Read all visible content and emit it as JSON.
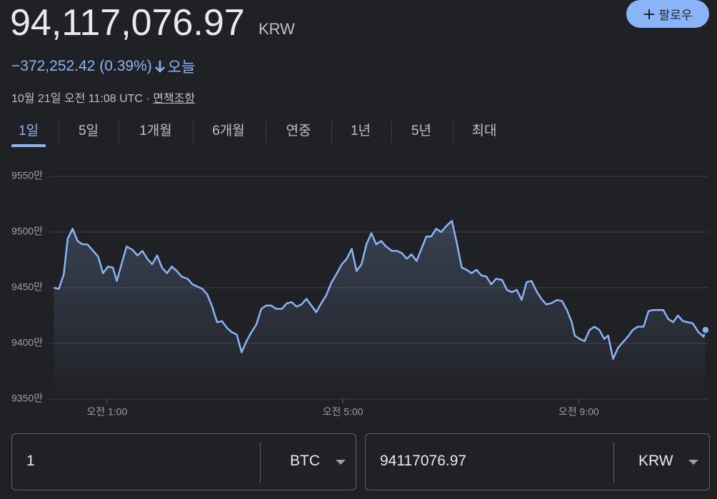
{
  "header": {
    "price": "94,117,076.97",
    "currency": "KRW",
    "change": "−372,252.42 (0.39%)",
    "period": "오늘",
    "timestamp": "10월 21일 오전 11:08 UTC",
    "separator": "·",
    "disclaimer": "면책조항",
    "follow": "팔로우"
  },
  "tabs": [
    "1일",
    "5일",
    "1개월",
    "6개월",
    "연중",
    "1년",
    "5년",
    "최대"
  ],
  "converter": {
    "from_amount": "1",
    "from_currency": "BTC",
    "to_amount": "94117076.97",
    "to_currency": "KRW"
  },
  "chart_data": {
    "type": "line",
    "grid": true,
    "xlim": [
      2,
      672
    ],
    "ylim": [
      9350,
      9550
    ],
    "xticks": [
      {
        "value": 60,
        "label": "오전 1:00"
      },
      {
        "value": 300,
        "label": "오전 5:00"
      },
      {
        "value": 540,
        "label": "오전 9:00"
      }
    ],
    "yticks": [
      {
        "value": 9350,
        "label": "9350만"
      },
      {
        "value": 9400,
        "label": "9400만"
      },
      {
        "value": 9450,
        "label": "9450만"
      },
      {
        "value": 9500,
        "label": "9500만"
      },
      {
        "value": 9550,
        "label": "9550만"
      }
    ],
    "x": [
      6,
      11,
      16,
      20,
      25,
      30,
      35,
      40,
      45,
      51,
      56,
      61,
      66,
      70,
      75,
      80,
      86,
      91,
      96,
      101,
      106,
      111,
      116,
      121,
      126,
      131,
      136,
      142,
      147,
      152,
      157,
      162,
      167,
      172,
      177,
      182,
      187,
      192,
      197,
      202,
      207,
      212,
      217,
      222,
      227,
      232,
      238,
      243,
      248,
      253,
      258,
      263,
      268,
      273,
      278,
      283,
      288,
      294,
      299,
      304,
      309,
      314,
      319,
      324,
      329,
      334,
      339,
      344,
      350,
      355,
      360,
      365,
      370,
      375,
      380,
      385,
      390,
      395,
      400,
      406,
      411,
      416,
      421,
      426,
      431,
      436,
      441,
      446,
      451,
      456,
      462,
      467,
      472,
      477,
      482,
      487,
      492,
      497,
      502,
      507,
      512,
      518,
      523,
      528,
      533,
      536,
      541,
      546,
      551,
      556,
      561,
      566,
      570,
      575,
      580,
      585,
      590,
      595,
      600,
      606,
      611,
      616,
      621,
      626,
      631,
      636,
      641,
      646,
      651,
      656,
      662,
      667,
      669
    ],
    "series": [
      {
        "color": "#8ab4f8",
        "values": [
          9450,
          9449,
          9462,
          9494,
          9503,
          9492,
          9489,
          9489,
          9484,
          9478,
          9463,
          9469,
          9468,
          9456,
          9472,
          9487,
          9484,
          9479,
          9483,
          9476,
          9471,
          9479,
          9468,
          9463,
          9469,
          9465,
          9460,
          9458,
          9453,
          9451,
          9449,
          9444,
          9433,
          9419,
          9420,
          9414,
          9410,
          9408,
          9392,
          9402,
          9410,
          9417,
          9431,
          9434,
          9434,
          9431,
          9431,
          9436,
          9437,
          9433,
          9435,
          9440,
          9434,
          9428,
          9436,
          9443,
          9454,
          9463,
          9471,
          9476,
          9485,
          9465,
          9471,
          9489,
          9499,
          9489,
          9492,
          9487,
          9483,
          9483,
          9481,
          9476,
          9480,
          9474,
          9485,
          9496,
          9496,
          9503,
          9500,
          9506,
          9510,
          9490,
          9468,
          9466,
          9463,
          9466,
          9461,
          9460,
          9453,
          9458,
          9457,
          9448,
          9446,
          9448,
          9439,
          9455,
          9456,
          9447,
          9440,
          9435,
          9436,
          9439,
          9438,
          9430,
          9419,
          9407,
          9404,
          9402,
          9412,
          9415,
          9412,
          9404,
          9407,
          9386,
          9396,
          9401,
          9406,
          9412,
          9415,
          9415,
          9429,
          9430,
          9430,
          9430,
          9422,
          9419,
          9425,
          9420,
          9419,
          9418,
          9410,
          9406,
          9412
        ]
      }
    ]
  }
}
